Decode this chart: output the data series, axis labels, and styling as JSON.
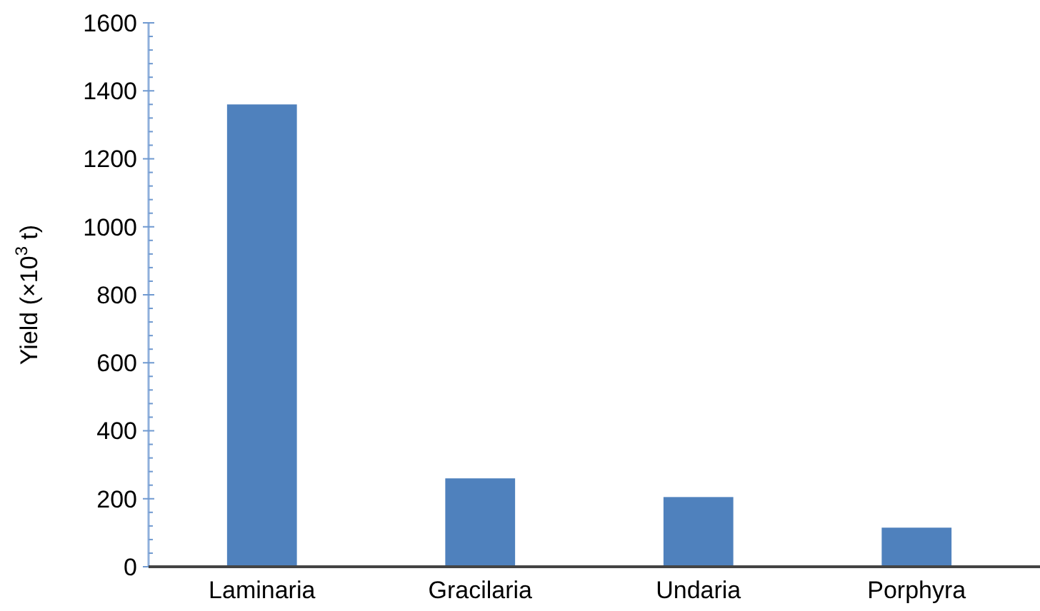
{
  "chart_data": {
    "type": "bar",
    "ylabel": "Yield (×10$^{3}$ t)",
    "categories": [
      "Laminaria",
      "Gracilaria",
      "Undaria",
      "Porphyra"
    ],
    "values": [
      1360,
      260,
      205,
      115
    ],
    "color": "#4f81bd",
    "ylim": [
      0,
      1600
    ],
    "yticks": [
      0,
      {
        "value": 40,
        "label": null
      },
      {
        "value": 80,
        "label": null
      },
      {
        "value": 120,
        "label": null
      },
      {
        "value": 160,
        "label": null
      },
      200,
      {
        "value": 240,
        "label": null
      },
      {
        "value": 280,
        "label": null
      },
      {
        "value": 320,
        "label": null
      },
      {
        "value": 360,
        "label": null
      },
      400,
      {
        "value": 440,
        "label": null
      },
      {
        "value": 480,
        "label": null
      },
      {
        "value": 520,
        "label": null
      },
      {
        "value": 560,
        "label": null
      },
      600,
      {
        "value": 640,
        "label": null
      },
      {
        "value": 680,
        "label": null
      },
      {
        "value": 720,
        "label": null
      },
      {
        "value": 760,
        "label": null
      },
      800,
      {
        "value": 840,
        "label": null
      },
      {
        "value": 880,
        "label": null
      },
      {
        "value": 920,
        "label": null
      },
      {
        "value": 960,
        "label": null
      },
      1000,
      {
        "value": 1040,
        "label": null
      },
      {
        "value": 1080,
        "label": null
      },
      {
        "value": 1120,
        "label": null
      },
      {
        "value": 1160,
        "label": null
      },
      1200,
      {
        "value": 1240,
        "label": null
      },
      {
        "value": 1280,
        "label": null
      },
      {
        "value": 1320,
        "label": null
      },
      {
        "value": 1360,
        "label": null
      },
      1400,
      {
        "value": 1440,
        "label": null
      },
      {
        "value": 1480,
        "label": null
      },
      {
        "value": 1520,
        "label": null
      },
      {
        "value": 1560,
        "label": null
      },
      1600
    ]
  }
}
